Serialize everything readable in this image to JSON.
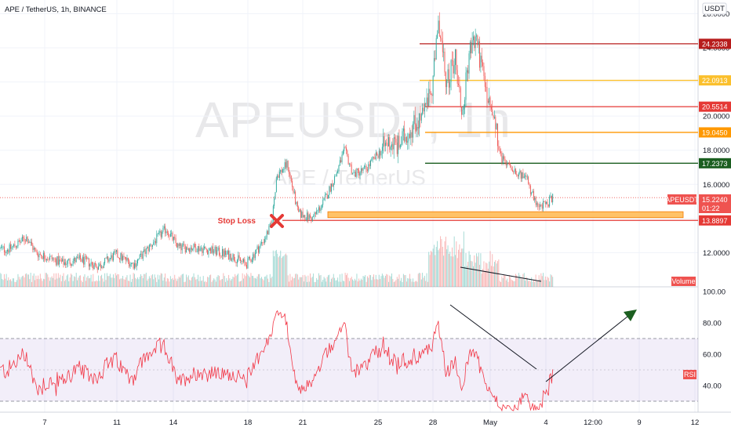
{
  "header": {
    "title": "APE / TetherUS, 1h, BINANCE"
  },
  "watermark": {
    "symbol": "APEUSDT, 1h",
    "name": "APE / TetherUS"
  },
  "price_axis": {
    "currency": "USDT"
  },
  "colors": {
    "up": "#26a69a",
    "down": "#ef5350",
    "rsi": "#f23645",
    "darkred": "#b71c1c",
    "yellow": "#fbc02d",
    "red": "#e53935",
    "orange": "#ff9800",
    "green": "#1b5e20",
    "zone": "#ffb74d",
    "axis_text": "#131722"
  },
  "annotations": {
    "stop_loss_label": "Stop Loss",
    "stop_loss_marker": "cross-icon",
    "current_symbol_tag": "APEUSDT",
    "current_price": "15.2240",
    "countdown": "01:22",
    "volume_tag": "Volume",
    "rsi_tag": "RSI"
  },
  "chart_data": [
    {
      "type": "candlestick",
      "title": "APE / TetherUS, 1h, BINANCE",
      "y_unit": "USDT",
      "y_ticks": [
        12.0,
        14.0,
        16.0,
        18.0,
        20.0,
        22.0,
        24.0,
        26.0
      ],
      "y_tick_labels": [
        "12.0000",
        "14.0000",
        "16.0000",
        "18.0000",
        "20.0000",
        "22.0000",
        "24.0000",
        "26.0000"
      ],
      "ylim": [
        10.0,
        26.8
      ],
      "x_tick_labels": [
        "7",
        "11",
        "14",
        "18",
        "21",
        "25",
        "28",
        "May",
        "4",
        "12:00",
        "9",
        "12"
      ],
      "price_path": [
        {
          "day": 5.0,
          "price": 12.2
        },
        {
          "day": 5.6,
          "price": 12.6
        },
        {
          "day": 6.0,
          "price": 12.9
        },
        {
          "day": 6.5,
          "price": 12.0
        },
        {
          "day": 7.0,
          "price": 11.8
        },
        {
          "day": 8.0,
          "price": 11.4
        },
        {
          "day": 9.0,
          "price": 11.6
        },
        {
          "day": 10.0,
          "price": 11.2
        },
        {
          "day": 11.0,
          "price": 11.9
        },
        {
          "day": 12.0,
          "price": 11.3
        },
        {
          "day": 13.0,
          "price": 12.5
        },
        {
          "day": 13.8,
          "price": 13.4
        },
        {
          "day": 14.5,
          "price": 12.3
        },
        {
          "day": 15.5,
          "price": 12.3
        },
        {
          "day": 16.5,
          "price": 12.1
        },
        {
          "day": 17.5,
          "price": 11.8
        },
        {
          "day": 18.3,
          "price": 11.3
        },
        {
          "day": 19.2,
          "price": 12.6
        },
        {
          "day": 19.7,
          "price": 13.6
        },
        {
          "day": 20.0,
          "price": 16.5
        },
        {
          "day": 20.6,
          "price": 17.2
        },
        {
          "day": 21.2,
          "price": 14.3
        },
        {
          "day": 22.0,
          "price": 14.0
        },
        {
          "day": 22.6,
          "price": 14.9
        },
        {
          "day": 23.3,
          "price": 16.5
        },
        {
          "day": 23.8,
          "price": 18.0
        },
        {
          "day": 24.3,
          "price": 16.6
        },
        {
          "day": 25.0,
          "price": 16.9
        },
        {
          "day": 25.7,
          "price": 17.8
        },
        {
          "day": 26.3,
          "price": 18.5
        },
        {
          "day": 26.8,
          "price": 18.2
        },
        {
          "day": 27.5,
          "price": 19.3
        },
        {
          "day": 28.2,
          "price": 20.0
        },
        {
          "day": 28.7,
          "price": 21.5
        },
        {
          "day": 29.1,
          "price": 25.5
        },
        {
          "day": 29.5,
          "price": 21.8
        },
        {
          "day": 30.0,
          "price": 23.5
        },
        {
          "day": 30.4,
          "price": 20.0
        },
        {
          "day": 30.8,
          "price": 23.8
        },
        {
          "day": 31.2,
          "price": 24.6
        },
        {
          "day": 31.7,
          "price": 21.5
        },
        {
          "day": 32.2,
          "price": 19.5
        },
        {
          "day": 32.6,
          "price": 17.5
        },
        {
          "day": 33.2,
          "price": 17.0
        },
        {
          "day": 34.0,
          "price": 16.3
        },
        {
          "day": 34.6,
          "price": 14.6
        },
        {
          "day": 35.0,
          "price": 14.8
        },
        {
          "day": 35.5,
          "price": 15.2
        }
      ],
      "horizontal_levels": [
        {
          "value": 24.2338,
          "label": "24.2338",
          "color_key": "darkred"
        },
        {
          "value": 22.0913,
          "label": "22.0913",
          "color_key": "yellow"
        },
        {
          "value": 20.5514,
          "label": "20.5514",
          "color_key": "red"
        },
        {
          "value": 19.045,
          "label": "19.0450",
          "color_key": "orange"
        },
        {
          "value": 17.2373,
          "label": "17.2373",
          "color_key": "green"
        },
        {
          "value": 13.8897,
          "label": "13.8897",
          "color_key": "red"
        }
      ],
      "support_zone": [
        14.05,
        14.4
      ],
      "stop_loss": 13.8897
    },
    {
      "type": "bar",
      "series": [
        {
          "name": "Volume"
        }
      ],
      "trend_line": "descending"
    },
    {
      "type": "line",
      "series": [
        {
          "name": "RSI"
        }
      ],
      "y_ticks": [
        40.0,
        60.0,
        80.0,
        100.0
      ],
      "y_tick_labels": [
        "40.00",
        "60.00",
        "80.00",
        "100.00"
      ],
      "ylim": [
        21,
        103
      ],
      "band": [
        30,
        70
      ],
      "midline": 50,
      "current_value": 47,
      "divergence": "bearish",
      "projection": "up"
    }
  ]
}
